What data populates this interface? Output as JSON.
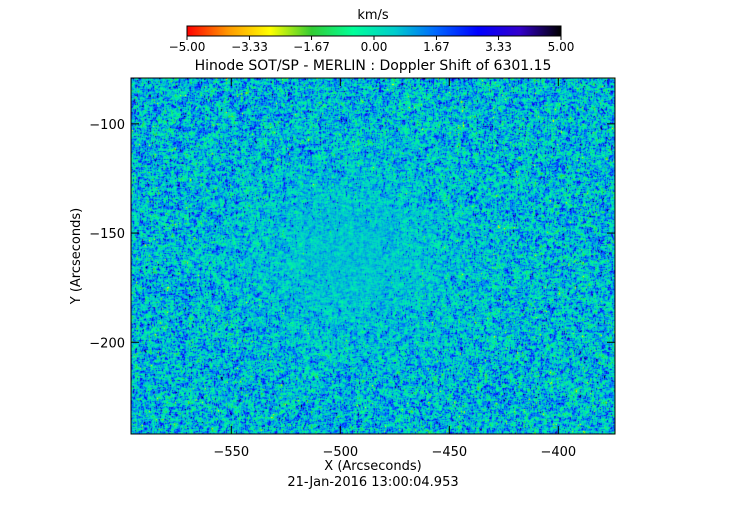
{
  "chart_data": {
    "type": "heatmap",
    "title": "Hinode SOT/SP - MERLIN : Doppler Shift of 6301.15",
    "xlabel": "X (Arcseconds)",
    "ylabel": "Y (Arcseconds)",
    "xlim": [
      -596,
      -374
    ],
    "ylim": [
      -242,
      -79
    ],
    "x_ticks": [
      -550,
      -500,
      -450,
      -400
    ],
    "x_tick_labels": [
      "−550",
      "−500",
      "−450",
      "−400"
    ],
    "y_ticks": [
      -100,
      -150,
      -200
    ],
    "y_tick_labels": [
      "−100",
      "−150",
      "−200"
    ],
    "colorbar": {
      "unit_label": "km/s",
      "range": [
        -5.0,
        5.0
      ],
      "ticks": [
        -5.0,
        -3.33,
        -1.67,
        0.0,
        1.67,
        3.33,
        5.0
      ],
      "tick_labels": [
        "−5.00",
        "−3.33",
        "−1.67",
        "0.00",
        "1.67",
        "3.33",
        "5.00"
      ],
      "colormap": "rainbow",
      "stops": [
        "#ff0000",
        "#ff9900",
        "#ffff00",
        "#33cc33",
        "#00ff99",
        "#00cccc",
        "#0066ff",
        "#0000ff",
        "#3300cc",
        "#000000"
      ]
    },
    "map_description_values": {
      "background_value": 0.6,
      "quiet_region_center": [
        -495,
        -160
      ],
      "quiet_region_radius": [
        60,
        50
      ]
    },
    "timestamp": "21-Jan-2016 13:00:04.953",
    "grid": false
  }
}
